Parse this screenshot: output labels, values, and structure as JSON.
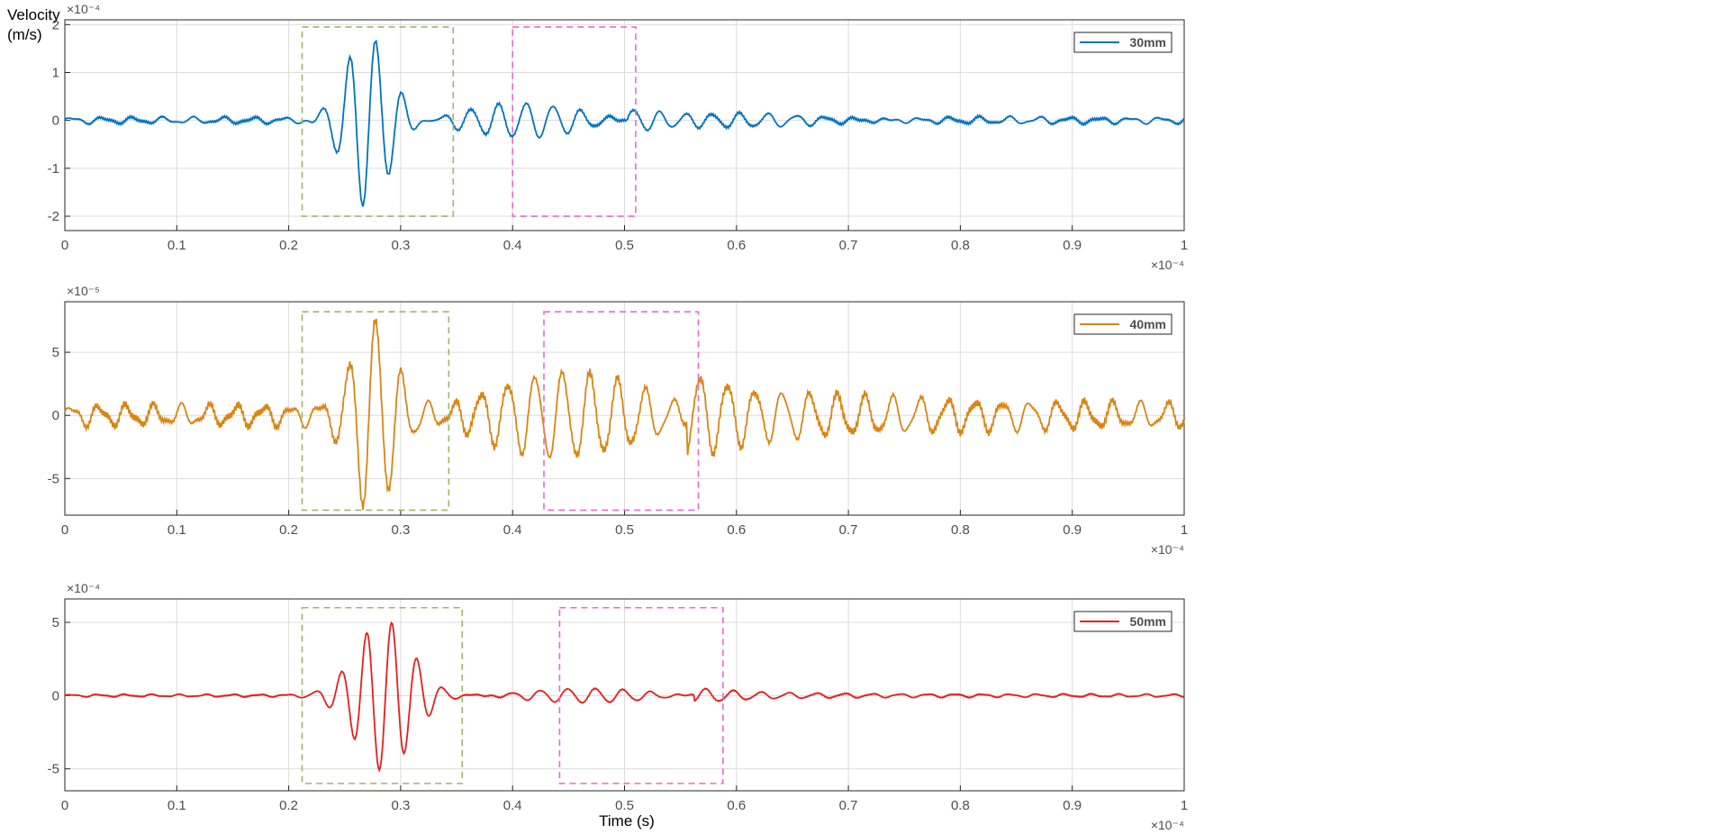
{
  "figure": {
    "ylabel_line1": "Velocity",
    "ylabel_line2": "(m/s)",
    "xlabel": "Time (s)"
  },
  "chart_data": [
    {
      "type": "line",
      "series": [
        {
          "name": "30mm",
          "color": "#0072BD"
        }
      ],
      "legend": "top-right",
      "grid": true,
      "xlim": [
        0,
        1
      ],
      "ylim": [
        -2.3,
        2.1
      ],
      "x_ticks": [
        0,
        0.1,
        0.2,
        0.3,
        0.4,
        0.5,
        0.6,
        0.7,
        0.8,
        0.9,
        1
      ],
      "x_tick_labels": [
        "0",
        "0.1",
        "0.2",
        "0.3",
        "0.4",
        "0.5",
        "0.6",
        "0.7",
        "0.8",
        "0.9",
        "1"
      ],
      "y_ticks": [
        -2,
        -1,
        0,
        1,
        2
      ],
      "y_tick_labels": [
        "-2",
        "-1",
        "0",
        "1",
        "2"
      ],
      "y_exponent": "×10⁻⁴",
      "x_exponent": "×10⁻⁴",
      "wave": {
        "noise_amp": 0.08,
        "noise_period": 0.027,
        "burst_start": 0.2,
        "burst_amp": 1.75,
        "burst_period": 0.0235,
        "burst_center": 0.27,
        "burst_width": 0.028,
        "tail_amp": 0.3,
        "tail_period": 0.024,
        "tail_start": 0.31,
        "tail_end": 0.56,
        "tail_decay": 0.1
      },
      "annotations": [
        {
          "label": "first-arrival-box",
          "x0": 0.212,
          "x1": 0.347,
          "y0": -2.0,
          "y1": 1.95,
          "color": "#9AB86B"
        },
        {
          "label": "second-arrival-box",
          "x0": 0.4,
          "x1": 0.51,
          "y0": -2.0,
          "y1": 1.95,
          "color": "#E86ACD"
        }
      ]
    },
    {
      "type": "line",
      "series": [
        {
          "name": "40mm",
          "color": "#D98514"
        }
      ],
      "legend": "top-right",
      "grid": true,
      "xlim": [
        0,
        1
      ],
      "ylim": [
        -7.9,
        9
      ],
      "x_ticks": [
        0,
        0.1,
        0.2,
        0.3,
        0.4,
        0.5,
        0.6,
        0.7,
        0.8,
        0.9,
        1
      ],
      "x_tick_labels": [
        "0",
        "0.1",
        "0.2",
        "0.3",
        "0.4",
        "0.5",
        "0.6",
        "0.7",
        "0.8",
        "0.9",
        "1"
      ],
      "y_ticks": [
        -5,
        0,
        5
      ],
      "y_tick_labels": [
        "-5",
        "0",
        "5"
      ],
      "y_exponent": "×10⁻⁵",
      "x_exponent": "×10⁻⁴",
      "wave": {
        "noise_amp": 1.0,
        "noise_period": 0.0245,
        "burst_start": 0.2,
        "burst_amp": 7.2,
        "burst_period": 0.0235,
        "burst_center": 0.275,
        "burst_width": 0.026,
        "tail_amp": 2.8,
        "tail_period": 0.0245,
        "tail_start": 0.34,
        "tail_end": 0.62,
        "tail_decay": 0.2
      },
      "annotations": [
        {
          "label": "first-arrival-box",
          "x0": 0.212,
          "x1": 0.343,
          "y0": -7.5,
          "y1": 8.2,
          "color": "#9AB86B"
        },
        {
          "label": "second-arrival-box",
          "x0": 0.428,
          "x1": 0.566,
          "y0": -7.5,
          "y1": 8.2,
          "color": "#E86ACD"
        }
      ]
    },
    {
      "type": "line",
      "series": [
        {
          "name": "50mm",
          "color": "#E81E1E"
        }
      ],
      "legend": "top-right",
      "grid": true,
      "xlim": [
        0,
        1
      ],
      "ylim": [
        -6.5,
        6.6
      ],
      "x_ticks": [
        0,
        0.1,
        0.2,
        0.3,
        0.4,
        0.5,
        0.6,
        0.7,
        0.8,
        0.9,
        1
      ],
      "x_tick_labels": [
        "0",
        "0.1",
        "0.2",
        "0.3",
        "0.4",
        "0.5",
        "0.6",
        "0.7",
        "0.8",
        "0.9",
        "1"
      ],
      "y_ticks": [
        -5,
        0,
        5
      ],
      "y_tick_labels": [
        "-5",
        "0",
        "5"
      ],
      "y_exponent": "×10⁻⁴",
      "x_exponent": "×10⁻⁴",
      "wave": {
        "noise_amp": 0.1,
        "noise_period": 0.024,
        "burst_start": 0.195,
        "burst_amp": 5.1,
        "burst_period": 0.0225,
        "burst_center": 0.285,
        "burst_width": 0.035,
        "tail_amp": 0.55,
        "tail_period": 0.0245,
        "tail_start": 0.37,
        "tail_end": 0.62,
        "tail_decay": 0.12
      },
      "annotations": [
        {
          "label": "first-arrival-box",
          "x0": 0.212,
          "x1": 0.355,
          "y0": -6.0,
          "y1": 6.0,
          "color": "#9AB86B"
        },
        {
          "label": "second-arrival-box",
          "x0": 0.442,
          "x1": 0.588,
          "y0": -6.0,
          "y1": 6.0,
          "color": "#E86ACD"
        }
      ]
    }
  ]
}
